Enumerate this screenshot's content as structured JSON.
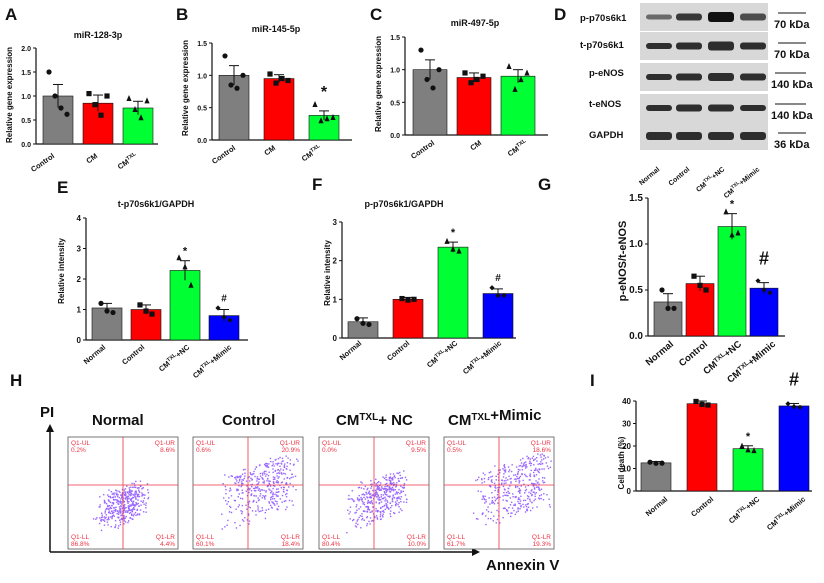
{
  "panels": {
    "A": {
      "letter": "A",
      "title": "miR-128-3p",
      "ylabel": "Relative gene expression",
      "categories": [
        "Control",
        "CM",
        "CM",
        "TXL"
      ]
    },
    "B": {
      "letter": "B",
      "title": "miR-145-5p",
      "ylabel": "Relative gene expression",
      "star": "*"
    },
    "C": {
      "letter": "C",
      "title": "miR-497-5p",
      "ylabel": "Relative gene expression"
    },
    "D": {
      "letter": "D",
      "bands": [
        "p-p70s6k1",
        "t-p70s6k1",
        "p-eNOS",
        "t-eNOS",
        "GAPDH"
      ],
      "sizes": [
        "70 kDa",
        "70 kDa",
        "140 kDa",
        "140 kDa",
        "36 kDa"
      ],
      "lanes": [
        "Normal",
        "Control",
        "CM",
        "TXL",
        "+NC",
        "CM",
        "TXL",
        "+Mimic"
      ]
    },
    "E": {
      "letter": "E",
      "title": "t-p70s6k1/GAPDH",
      "ylabel": "Relative intensity",
      "star": "*",
      "hash": "#",
      "categories": [
        "Normal",
        "Control",
        "CM",
        "TXL",
        "+NC",
        "CM",
        "TXL",
        "+Mimic"
      ]
    },
    "F": {
      "letter": "F",
      "title": "p-p70s6k1/GAPDH",
      "ylabel": "Relative intensity",
      "star": "*",
      "hash": "#"
    },
    "G": {
      "letter": "G",
      "ylabel": "p-eNOS/t-eNOS",
      "star": "*",
      "hash": "#"
    },
    "H": {
      "letter": "H",
      "pi": "PI",
      "annexin": "Annexin V",
      "headers": [
        "Normal",
        "Control",
        "CM",
        "TXL",
        "+ NC",
        "CM",
        "TXL",
        "+Mimic"
      ],
      "plots": [
        {
          "ul": "Q1-UL",
          "ul_v": "0.2%",
          "ur": "Q1-UR",
          "ur_v": "8.6%",
          "ll": "Q1-LL",
          "ll_v": "86.8%",
          "lr": "Q1-LR",
          "lr_v": "4.4%"
        },
        {
          "ul": "Q1-UL",
          "ul_v": "0.6%",
          "ur": "Q1-UR",
          "ur_v": "20.9%",
          "ll": "Q1-LL",
          "ll_v": "60.1%",
          "lr": "Q1-LR",
          "lr_v": "18.4%"
        },
        {
          "ul": "Q1-UL",
          "ul_v": "0.0%",
          "ur": "Q1-UR",
          "ur_v": "9.5%",
          "ll": "Q1-LL",
          "ll_v": "80.4%",
          "lr": "Q1-LR",
          "lr_v": "10.0%"
        },
        {
          "ul": "Q1-UL",
          "ul_v": "0.5%",
          "ur": "Q1-UR",
          "ur_v": "18.6%",
          "ll": "Q1-LL",
          "ll_v": "61.7%",
          "lr": "Q1-LR",
          "lr_v": "19.3%"
        }
      ]
    },
    "I": {
      "letter": "I",
      "ylabel": "Cell death (%)",
      "star": "*",
      "hash": "#"
    }
  },
  "colors": {
    "gray": "#7f7f7f",
    "red": "#ff0000",
    "green": "#00ff33",
    "blue": "#0000ff",
    "dots": "#9966ff",
    "quad": "#ee3344"
  },
  "chart_data": [
    {
      "id": "A",
      "type": "bar",
      "title": "miR-128-3p",
      "ylabel": "Relative gene expression",
      "categories": [
        "Control",
        "CM",
        "CM TXL"
      ],
      "values": [
        1.0,
        0.85,
        0.75
      ],
      "errors": [
        0.24,
        0.17,
        0.14
      ],
      "ylim": [
        0,
        2.0
      ],
      "yticks": [
        0,
        0.5,
        1.0,
        1.5,
        2.0
      ],
      "ytick_labels": [
        "0.0",
        "0.5",
        "1.0",
        "1.5",
        "2.0"
      ],
      "points": [
        [
          1.5,
          1.0,
          0.75,
          0.62
        ],
        [
          1.05,
          0.82,
          0.6,
          1.0
        ],
        [
          0.95,
          0.72,
          0.55,
          0.9
        ]
      ]
    },
    {
      "id": "B",
      "type": "bar",
      "title": "miR-145-5p",
      "ylabel": "Relative gene expression",
      "categories": [
        "Control",
        "CM",
        "CM TXL"
      ],
      "values": [
        1.0,
        0.95,
        0.38
      ],
      "errors": [
        0.15,
        0.06,
        0.07
      ],
      "ylim": [
        0,
        1.5
      ],
      "yticks": [
        0,
        0.5,
        1.0,
        1.5
      ],
      "ytick_labels": [
        "0.0",
        "0.5",
        "1.0",
        "1.5"
      ],
      "points": [
        [
          1.3,
          0.85,
          0.8,
          1.0
        ],
        [
          1.02,
          0.88,
          0.95,
          0.92
        ],
        [
          0.55,
          0.3,
          0.33,
          0.35
        ]
      ],
      "annotations": {
        "star": [
          2
        ]
      }
    },
    {
      "id": "C",
      "type": "bar",
      "title": "miR-497-5p",
      "ylabel": "Relative gene expression",
      "categories": [
        "Control",
        "CM",
        "CM TXL"
      ],
      "values": [
        1.0,
        0.88,
        0.9
      ],
      "errors": [
        0.15,
        0.07,
        0.1
      ],
      "ylim": [
        0,
        1.5
      ],
      "yticks": [
        0,
        0.5,
        1.0,
        1.5
      ],
      "ytick_labels": [
        "0.0",
        "0.5",
        "1.0",
        "1.5"
      ],
      "points": [
        [
          1.3,
          0.85,
          0.72,
          1.0
        ],
        [
          0.95,
          0.8,
          0.85,
          0.9
        ],
        [
          1.05,
          0.7,
          0.85,
          0.95
        ]
      ]
    },
    {
      "id": "E",
      "type": "bar",
      "title": "t-p70s6k1/GAPDH",
      "ylabel": "Relative intensity",
      "categories": [
        "Normal",
        "Control",
        "CM TXL+NC",
        "CM TXL+Mimic"
      ],
      "values": [
        1.05,
        1.0,
        2.28,
        0.8
      ],
      "errors": [
        0.15,
        0.15,
        0.32,
        0.2
      ],
      "ylim": [
        0,
        4
      ],
      "yticks": [
        0,
        1,
        2,
        3,
        4
      ],
      "ytick_labels": [
        "0",
        "1",
        "2",
        "3",
        "4"
      ],
      "points": [
        [
          1.2,
          0.95,
          0.9
        ],
        [
          1.15,
          0.95,
          0.85
        ],
        [
          2.7,
          2.4,
          1.8
        ],
        [
          1.05,
          0.75,
          0.65
        ]
      ],
      "annotations": {
        "star": [
          2
        ],
        "hash": [
          3
        ]
      }
    },
    {
      "id": "F",
      "type": "bar",
      "title": "p-p70s6k1/GAPDH",
      "ylabel": "Relative intensity",
      "categories": [
        "Normal",
        "Control",
        "CM TXL+NC",
        "CM TXL+Mimic"
      ],
      "values": [
        0.42,
        1.0,
        2.35,
        1.15
      ],
      "errors": [
        0.1,
        0.05,
        0.13,
        0.12
      ],
      "ylim": [
        0,
        3
      ],
      "yticks": [
        0,
        1,
        2,
        3
      ],
      "ytick_labels": [
        "0",
        "1",
        "2",
        "3"
      ],
      "points": [
        [
          0.5,
          0.38,
          0.35
        ],
        [
          1.02,
          0.98,
          1.0
        ],
        [
          2.5,
          2.3,
          2.25
        ],
        [
          1.3,
          1.1,
          1.1
        ]
      ],
      "annotations": {
        "star": [
          2
        ],
        "hash": [
          3
        ]
      }
    },
    {
      "id": "G",
      "type": "bar",
      "ylabel": "p-eNOS/t-eNOS",
      "categories": [
        "Normal",
        "Control",
        "CM TXL+NC",
        "CM TXL+Mimic"
      ],
      "values": [
        0.37,
        0.57,
        1.19,
        0.52
      ],
      "errors": [
        0.09,
        0.08,
        0.14,
        0.06
      ],
      "ylim": [
        0,
        1.5
      ],
      "yticks": [
        0,
        0.5,
        1.0,
        1.5
      ],
      "ytick_labels": [
        "0.0",
        "0.5",
        "1.0",
        "1.5"
      ],
      "points": [
        [
          0.5,
          0.3,
          0.3
        ],
        [
          0.65,
          0.55,
          0.5
        ],
        [
          1.35,
          1.1,
          1.12
        ],
        [
          0.6,
          0.5,
          0.47
        ]
      ],
      "annotations": {
        "star": [
          2
        ],
        "hash": [
          3
        ]
      }
    },
    {
      "id": "I",
      "type": "bar",
      "ylabel": "Cell death (%)",
      "categories": [
        "Normal",
        "Control",
        "CM TXL+NC",
        "CM TXL+Mimic"
      ],
      "values": [
        12.5,
        38.8,
        18.8,
        37.8
      ],
      "errors": [
        0.6,
        1.2,
        1.3,
        1.1
      ],
      "ylim": [
        0,
        40
      ],
      "yticks": [
        0,
        10,
        20,
        30,
        40
      ],
      "ytick_labels": [
        "0",
        "10",
        "20",
        "30",
        "40"
      ],
      "points": [
        [
          12.8,
          12.3,
          12.4
        ],
        [
          39.8,
          38.5,
          38.2
        ],
        [
          20.0,
          18.3,
          18.0
        ],
        [
          38.8,
          37.5,
          37.2
        ]
      ],
      "annotations": {
        "star": [
          2
        ],
        "hash": [
          3
        ]
      }
    }
  ]
}
